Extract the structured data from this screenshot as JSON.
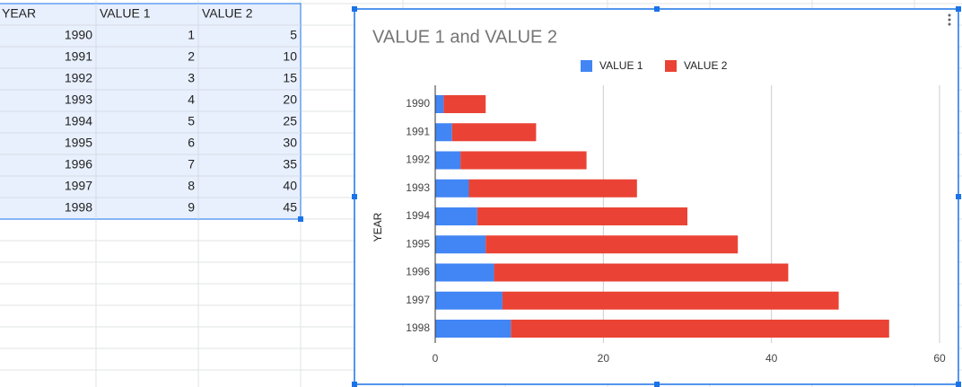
{
  "table": {
    "header": [
      "YEAR",
      "VALUE 1",
      "VALUE 2"
    ],
    "rows": [
      [
        "1990",
        "1",
        "5"
      ],
      [
        "1991",
        "2",
        "10"
      ],
      [
        "1992",
        "3",
        "15"
      ],
      [
        "1993",
        "4",
        "20"
      ],
      [
        "1994",
        "5",
        "25"
      ],
      [
        "1995",
        "6",
        "30"
      ],
      [
        "1996",
        "7",
        "35"
      ],
      [
        "1997",
        "8",
        "40"
      ],
      [
        "1998",
        "9",
        "45"
      ]
    ]
  },
  "chart_data": {
    "type": "bar",
    "orientation": "horizontal",
    "stacked": true,
    "title": "VALUE 1 and VALUE 2",
    "y_label": "YEAR",
    "categories": [
      "1990",
      "1991",
      "1992",
      "1993",
      "1994",
      "1995",
      "1996",
      "1997",
      "1998"
    ],
    "series": [
      {
        "name": "VALUE 1",
        "color": "#4285f4",
        "values": [
          1,
          2,
          3,
          4,
          5,
          6,
          7,
          8,
          9
        ]
      },
      {
        "name": "VALUE 2",
        "color": "#ea4335",
        "values": [
          5,
          10,
          15,
          20,
          25,
          30,
          35,
          40,
          45
        ]
      }
    ],
    "xlim": [
      0,
      60
    ],
    "xticks": [
      0,
      20,
      40,
      60
    ],
    "grid": true,
    "legend": "top"
  }
}
